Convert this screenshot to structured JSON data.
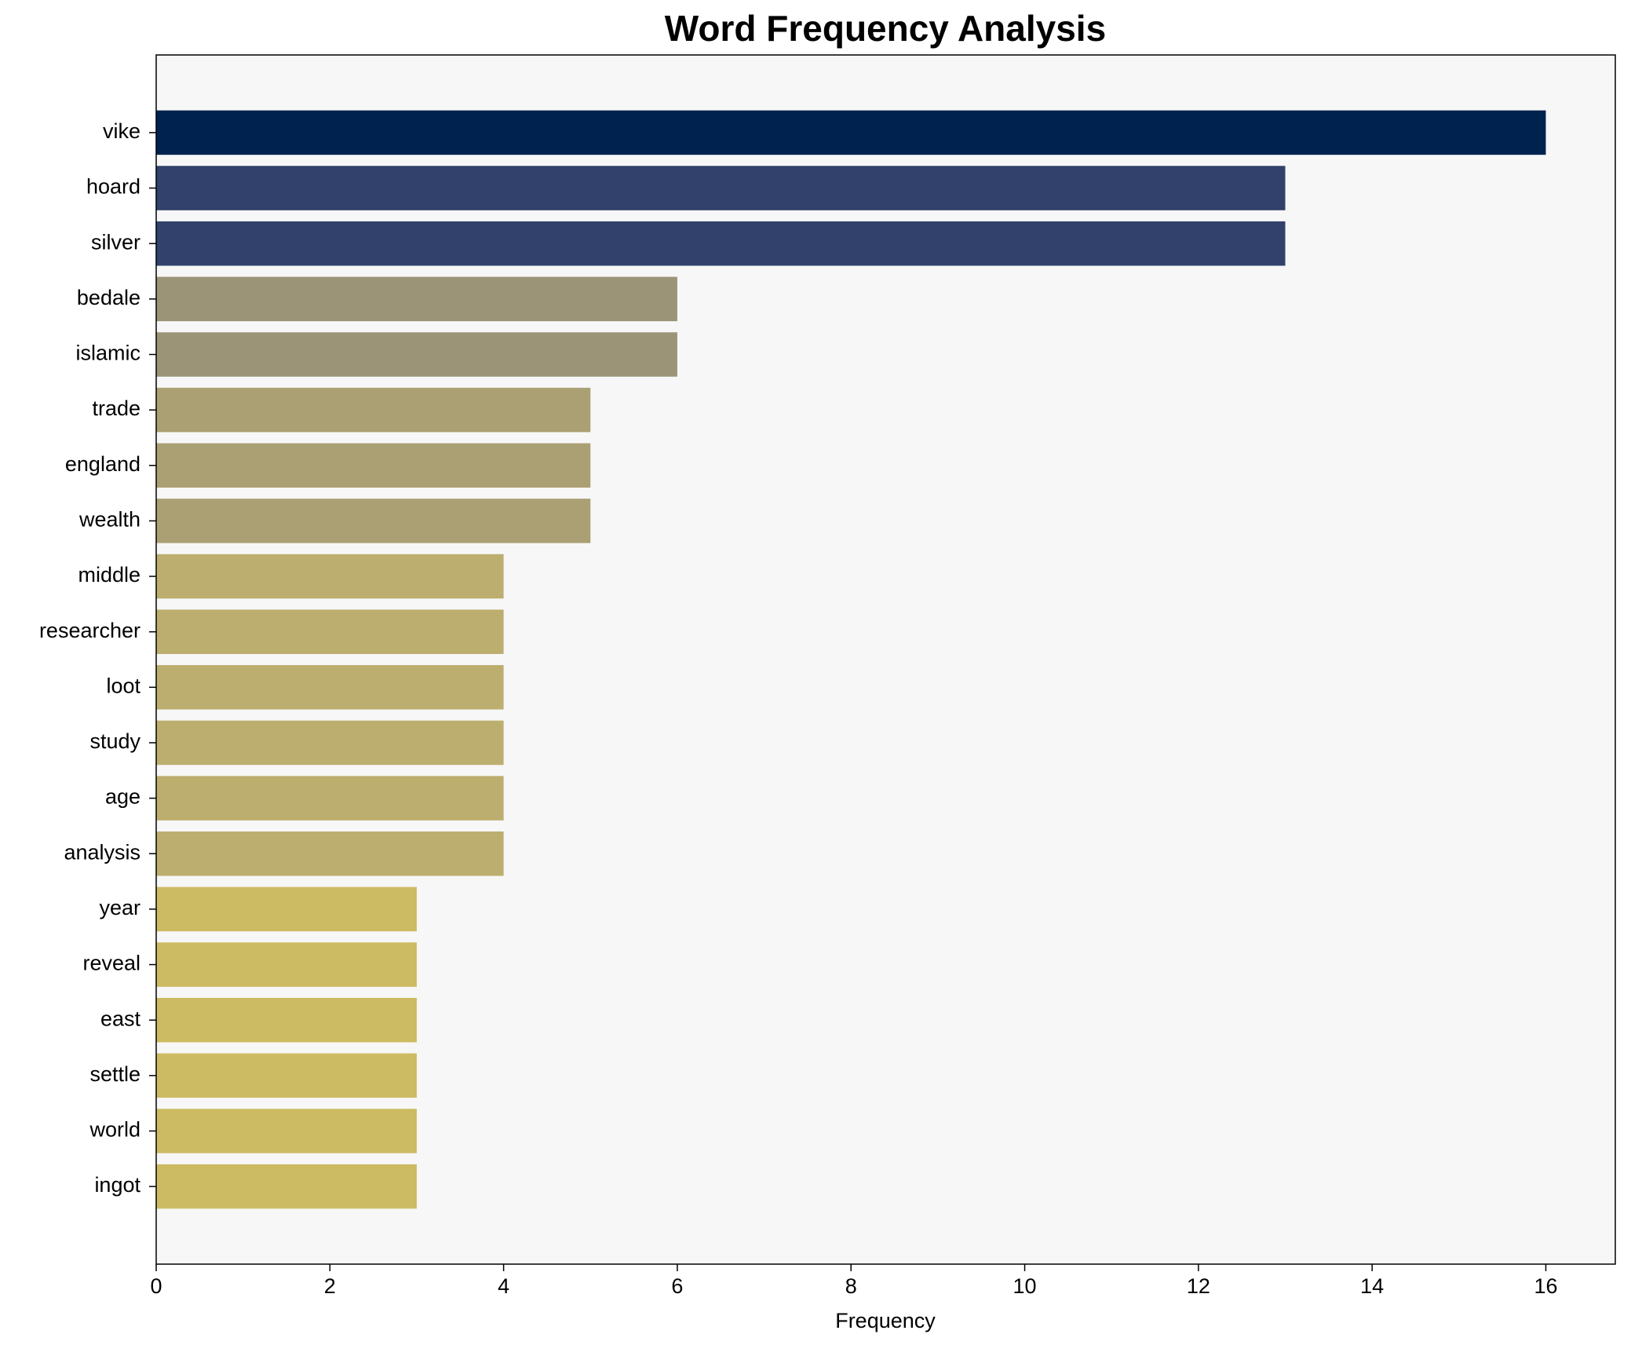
{
  "chart_data": {
    "type": "barh",
    "title": "Word Frequency Analysis",
    "x_label": "Frequency",
    "categories": [
      "vike",
      "hoard",
      "silver",
      "bedale",
      "islamic",
      "trade",
      "england",
      "wealth",
      "middle",
      "researcher",
      "loot",
      "study",
      "age",
      "analysis",
      "year",
      "reveal",
      "east",
      "settle",
      "world",
      "ingot"
    ],
    "values": [
      16,
      13,
      13,
      6,
      6,
      5,
      5,
      5,
      4,
      4,
      4,
      4,
      4,
      4,
      3,
      3,
      3,
      3,
      3,
      3
    ],
    "colors": [
      "#00224e",
      "#31416b",
      "#31416b",
      "#9c9477",
      "#9c9477",
      "#aba074",
      "#aba074",
      "#aba074",
      "#bcae6e",
      "#bcae6e",
      "#bcae6e",
      "#bcae6e",
      "#bcae6e",
      "#bcae6e",
      "#cdbb63",
      "#cdbb63",
      "#cdbb63",
      "#cdbb63",
      "#cdbb63",
      "#cdbb63"
    ],
    "xlim": [
      0,
      16.8
    ],
    "xticks": [
      0,
      2,
      4,
      6,
      8,
      10,
      12,
      14,
      16
    ],
    "grid": false
  }
}
